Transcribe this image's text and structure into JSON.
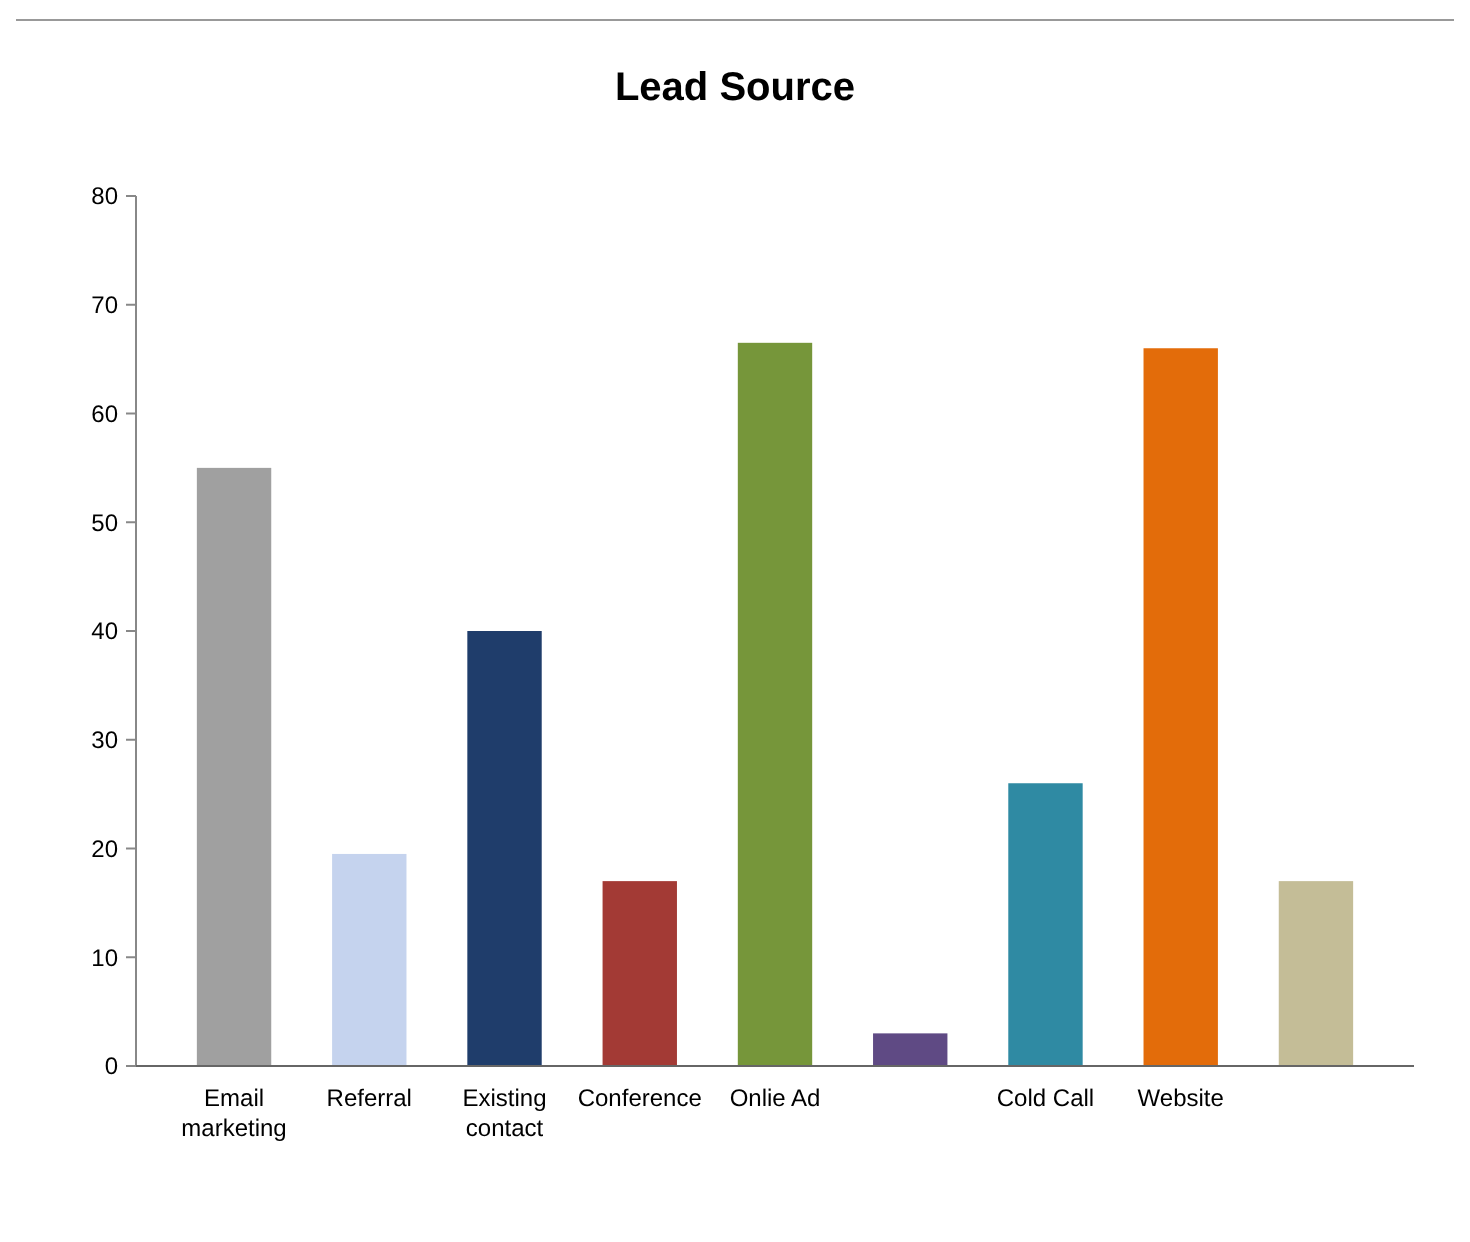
{
  "chart_data": {
    "type": "bar",
    "title": "Lead Source",
    "categories": [
      "Email marketing",
      "Referral",
      "Existing contact",
      "Conference",
      "Onlie Ad",
      null,
      "Cold Call",
      "Website",
      null
    ],
    "values": [
      55,
      19.5,
      40,
      17,
      66.5,
      3,
      26,
      66,
      17
    ],
    "colors": [
      "#a0a0a0",
      "#c5d3ee",
      "#1f3d6b",
      "#a33a35",
      "#76963a",
      "#5f4a84",
      "#2f8aa3",
      "#e36c0a",
      "#c4bd97"
    ],
    "ylim": [
      0,
      80
    ],
    "yticks": [
      0,
      10,
      20,
      30,
      40,
      50,
      60,
      70,
      80
    ],
    "grid": false
  }
}
